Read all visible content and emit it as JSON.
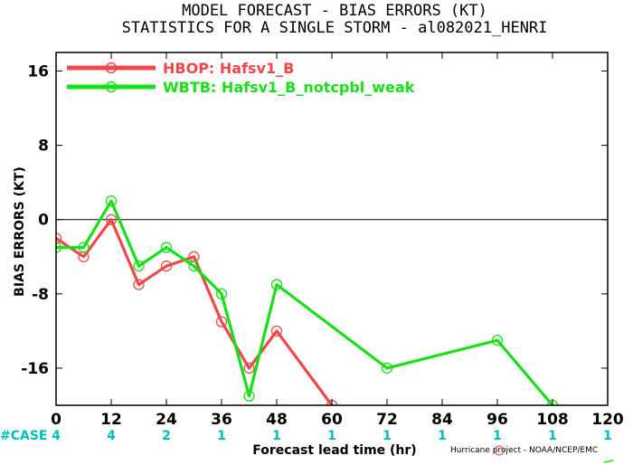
{
  "title_line1": "MODEL FORECAST - BIAS ERRORS (KT)",
  "title_line2": "STATISTICS FOR A SINGLE STORM - al082021_HENRI",
  "credit": "Hurricane project - NOAA/NCEP/EMC",
  "case_label": "#CASE",
  "colors": {
    "series1": "#f04848",
    "series2": "#18e018",
    "case": "#00bcbc"
  },
  "chart_data": {
    "type": "line",
    "xlabel": "Forecast lead time (hr)",
    "ylabel": "BIAS ERRORS (KT)",
    "xlim": [
      0,
      120
    ],
    "ylim": [
      -20,
      18
    ],
    "xticks": [
      0,
      12,
      24,
      36,
      48,
      60,
      72,
      84,
      96,
      108,
      120
    ],
    "yticks": [
      -16,
      -8,
      0,
      8,
      16
    ],
    "zero_line": true,
    "legend_position": "top-left",
    "case_counts": {
      "x": [
        0,
        12,
        24,
        36,
        48,
        60,
        72,
        84,
        96,
        108,
        120
      ],
      "counts": [
        "4",
        "4",
        "2",
        "1",
        "1",
        "1",
        "1",
        "1",
        "1",
        "1",
        "1"
      ]
    },
    "series": [
      {
        "name": "HBOP: Hafsv1_B",
        "color": "#f04848",
        "x": [
          0,
          6,
          12,
          18,
          24,
          30,
          36,
          42,
          48,
          60
        ],
        "y": [
          -2,
          -4,
          0,
          -7,
          -5,
          -4,
          -11,
          -16,
          -12,
          -20
        ]
      },
      {
        "name": "WBTB: Hafsv1_B_notcpbl_weak",
        "color": "#18e018",
        "x": [
          0,
          6,
          12,
          18,
          24,
          30,
          36,
          42,
          48,
          72,
          96,
          108
        ],
        "y": [
          -3,
          -3,
          2,
          -5,
          -3,
          -5,
          -8,
          -19,
          -7,
          -16,
          -13,
          -20
        ]
      }
    ]
  }
}
